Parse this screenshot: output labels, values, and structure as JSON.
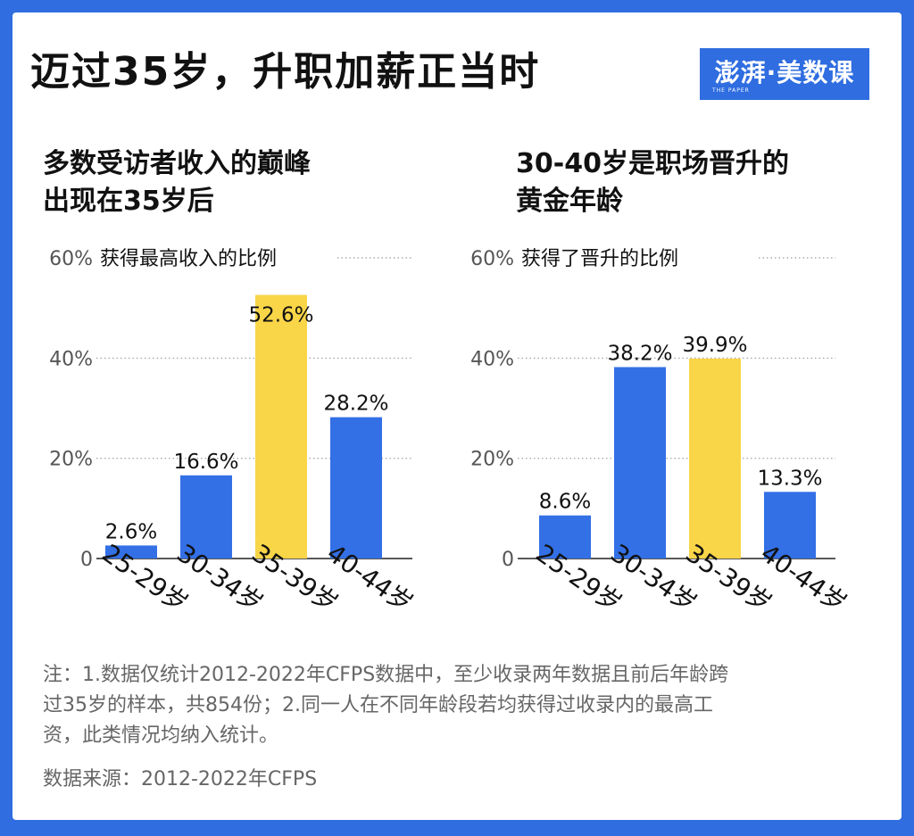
{
  "title": "迈过35岁，升职加薪正当时",
  "logo": {
    "text": "澎湃·美数课",
    "subtext": "THE PAPER"
  },
  "colors": {
    "background": "#2f6de0",
    "bar_blue": "#3370e6",
    "bar_highlight": "#f9d548",
    "text": "#111111",
    "note": "#666666"
  },
  "chart_data": [
    {
      "type": "bar",
      "subtitle": [
        "多数受访者收入的巅峰",
        "出现在35岁后"
      ],
      "ylabel": "获得最高收入的比例",
      "categories": [
        "25-29岁",
        "30-34岁",
        "35-39岁",
        "40-44岁"
      ],
      "values": [
        2.6,
        16.6,
        52.6,
        28.2
      ],
      "value_labels": [
        "2.6%",
        "16.6%",
        "52.6%",
        "28.2%"
      ],
      "highlight_index": 2,
      "ylim": [
        0,
        60
      ],
      "yticks": [
        0,
        20,
        40,
        60
      ],
      "ytick_labels": [
        "0",
        "20%",
        "40%",
        "60%"
      ],
      "grid": true
    },
    {
      "type": "bar",
      "subtitle": [
        "30-40岁是职场晋升的",
        "黄金年龄"
      ],
      "ylabel": "获得了晋升的比例",
      "categories": [
        "25-29岁",
        "30-34岁",
        "35-39岁",
        "40-44岁"
      ],
      "values": [
        8.6,
        38.2,
        39.9,
        13.3
      ],
      "value_labels": [
        "8.6%",
        "38.2%",
        "39.9%",
        "13.3%"
      ],
      "highlight_index": 2,
      "ylim": [
        0,
        60
      ],
      "yticks": [
        0,
        20,
        40,
        60
      ],
      "ytick_labels": [
        "0",
        "20%",
        "40%",
        "60%"
      ],
      "grid": true
    }
  ],
  "notes": [
    "注：1.数据仅统计2012-2022年CFPS数据中，至少收录两年数据且前后年龄跨",
    "过35岁的样本，共854份；2.同一人在不同年龄段若均获得过收录内的最高工",
    "资，此类情况均纳入统计。"
  ],
  "source": "数据来源：2012-2022年CFPS"
}
